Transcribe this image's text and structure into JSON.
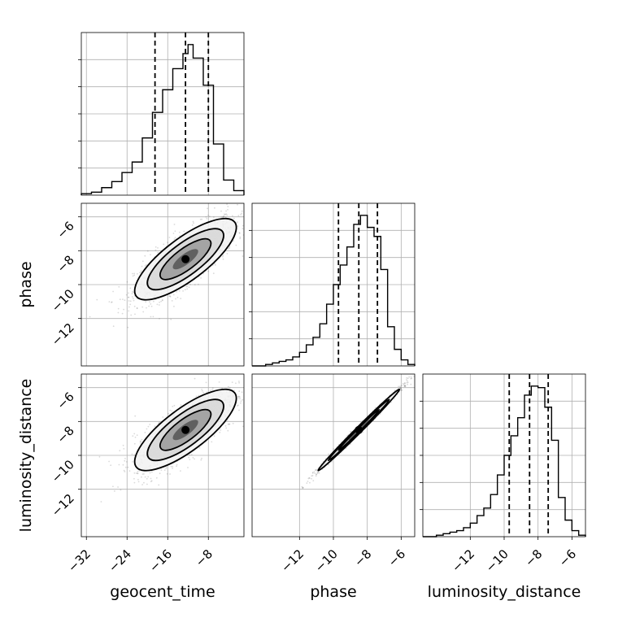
{
  "chart_data": {
    "type": "corner",
    "parameters": [
      "geocent_time",
      "phase",
      "luminosity_distance"
    ],
    "ranges": {
      "geocent_time": [
        -33,
        -1
      ],
      "phase": [
        -14.8,
        -5.2
      ],
      "luminosity_distance": [
        -14.8,
        -5.2
      ]
    },
    "ticks": {
      "geocent_time": [
        -32,
        -24,
        -16,
        -8
      ],
      "phase": [
        -12,
        -10,
        -8,
        -6
      ],
      "luminosity_distance": [
        -12,
        -10,
        -8,
        -6
      ]
    },
    "tick_labels": {
      "geocent_time": [
        "−32",
        "−24",
        "−16",
        "−8"
      ],
      "phase": [
        "−12",
        "−10",
        "−8",
        "−6"
      ],
      "luminosity_distance": [
        "−12",
        "−10",
        "−8",
        "−6"
      ]
    },
    "quantiles": {
      "geocent_time": [
        -18.5,
        -12.5,
        -8.0
      ],
      "phase": [
        -9.7,
        -8.5,
        -7.4
      ],
      "luminosity_distance": [
        -9.7,
        -8.5,
        -7.4
      ]
    },
    "histograms": {
      "geocent_time": {
        "edges": [
          -33,
          -31,
          -29,
          -27,
          -25,
          -23,
          -21,
          -19,
          -17,
          -15,
          -13,
          -12,
          -11,
          -9,
          -7,
          -5,
          -3,
          -1
        ],
        "counts": [
          1,
          2,
          5,
          9,
          15,
          22,
          38,
          55,
          70,
          84,
          94,
          100,
          91,
          73,
          34,
          10,
          3
        ]
      },
      "phase": {
        "edges": [
          -14.8,
          -14.0,
          -13.6,
          -13.2,
          -12.8,
          -12.4,
          -12.0,
          -11.6,
          -11.2,
          -10.8,
          -10.4,
          -10.0,
          -9.6,
          -9.2,
          -8.8,
          -8.4,
          -8.0,
          -7.6,
          -7.2,
          -6.8,
          -6.4,
          -6.0,
          -5.6,
          -5.2
        ],
        "counts": [
          0,
          1,
          2,
          3,
          4,
          6,
          9,
          14,
          19,
          28,
          41,
          54,
          67,
          79,
          94,
          100,
          92,
          86,
          64,
          26,
          11,
          4,
          1
        ]
      },
      "luminosity_distance": {
        "edges": [
          -14.8,
          -14.0,
          -13.6,
          -13.2,
          -12.8,
          -12.4,
          -12.0,
          -11.6,
          -11.2,
          -10.8,
          -10.4,
          -10.0,
          -9.6,
          -9.2,
          -8.8,
          -8.4,
          -8.0,
          -7.6,
          -7.2,
          -6.8,
          -6.4,
          -6.0,
          -5.6,
          -5.2
        ],
        "counts": [
          0,
          1,
          2,
          3,
          4,
          6,
          9,
          14,
          19,
          28,
          41,
          54,
          67,
          79,
          94,
          100,
          99,
          86,
          64,
          26,
          11,
          4,
          1
        ]
      }
    },
    "pairs": [
      {
        "x": "geocent_time",
        "y": "phase",
        "x_center": -12.5,
        "y_center": -8.5,
        "x_sd": 5.0,
        "y_sd": 1.2,
        "correlation": 0.78
      },
      {
        "x": "geocent_time",
        "y": "luminosity_distance",
        "x_center": -12.5,
        "y_center": -8.5,
        "x_sd": 5.0,
        "y_sd": 1.2,
        "correlation": 0.78
      },
      {
        "x": "phase",
        "y": "luminosity_distance",
        "x_center": -8.5,
        "y_center": -8.5,
        "x_sd": 1.2,
        "y_sd": 1.2,
        "correlation": 0.995
      }
    ],
    "contour_levels": [
      0.5,
      1.0,
      1.5,
      2.0
    ],
    "xlabel": [
      "geocent_time",
      "phase",
      "luminosity_distance"
    ],
    "ylabel": [
      "phase",
      "luminosity_distance"
    ],
    "grid": true
  }
}
